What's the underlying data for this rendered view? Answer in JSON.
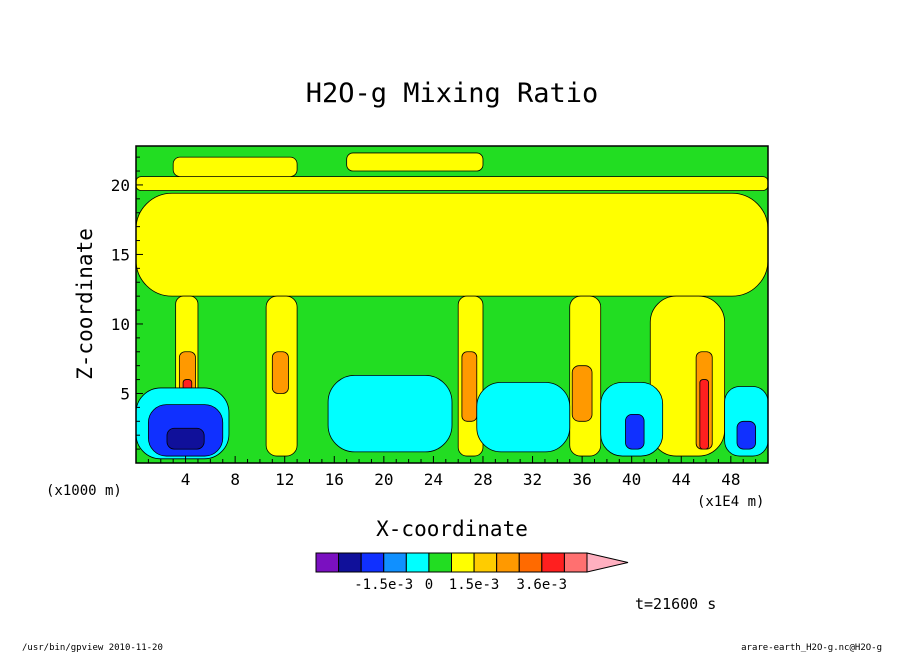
{
  "chart_data": {
    "type": "heatmap",
    "title": "H2O-g Mixing Ratio",
    "xlabel": "X-coordinate",
    "ylabel": "Z-coordinate",
    "x_unit_left": "(x1000 m)",
    "x_unit_right": "(x1E4 m)",
    "xlim": [
      0,
      51
    ],
    "ylim": [
      0,
      22.8
    ],
    "xticks": [
      4,
      8,
      12,
      16,
      20,
      24,
      28,
      32,
      36,
      40,
      44,
      48
    ],
    "yticks": [
      5,
      10,
      15,
      20
    ],
    "grid": false,
    "background_color": "#22dd22",
    "colorbar": {
      "colors": [
        "#7a10c0",
        "#10109a",
        "#1030ff",
        "#1090ff",
        "#00ffff",
        "#22dd22",
        "#ffff00",
        "#ffcc00",
        "#ff9900",
        "#ff6a00",
        "#ff1f1f",
        "#ff7070",
        "#ffb0c0"
      ],
      "labels": [
        "-1.5e-3",
        "0",
        "1.5e-3",
        "3.6e-3"
      ],
      "label_at_boundary": [
        3,
        5,
        7,
        10
      ]
    },
    "regions": [
      {
        "level": "positive",
        "color": "#ffff00",
        "x": [
          0,
          51
        ],
        "z": [
          19.6,
          20.6
        ]
      },
      {
        "level": "positive",
        "color": "#ffff00",
        "x": [
          3,
          13
        ],
        "z": [
          20.6,
          22
        ]
      },
      {
        "level": "positive",
        "color": "#ffff00",
        "x": [
          17,
          28
        ],
        "z": [
          21,
          22.3
        ]
      },
      {
        "level": "positive",
        "color": "#ffff00",
        "x": [
          0,
          51
        ],
        "z": [
          12,
          19.4
        ]
      },
      {
        "level": "positive",
        "color": "#ffff00",
        "x": [
          3.2,
          5
        ],
        "z": [
          0.5,
          12
        ]
      },
      {
        "level": "positive",
        "color": "#ffff00",
        "x": [
          10.5,
          13
        ],
        "z": [
          0.5,
          12
        ]
      },
      {
        "level": "positive",
        "color": "#ffff00",
        "x": [
          26,
          28
        ],
        "z": [
          0.5,
          12
        ]
      },
      {
        "level": "positive",
        "color": "#ffff00",
        "x": [
          35,
          37.5
        ],
        "z": [
          0.5,
          12
        ]
      },
      {
        "level": "positive",
        "color": "#ffff00",
        "x": [
          41.5,
          47.5
        ],
        "z": [
          0.5,
          12
        ]
      },
      {
        "level": "positive",
        "color": "#ff9900",
        "x": [
          3.5,
          4.8
        ],
        "z": [
          1,
          8
        ]
      },
      {
        "level": "positive",
        "color": "#ff9900",
        "x": [
          11,
          12.3
        ],
        "z": [
          5,
          8
        ]
      },
      {
        "level": "positive",
        "color": "#ff9900",
        "x": [
          26.3,
          27.5
        ],
        "z": [
          3,
          8
        ]
      },
      {
        "level": "positive",
        "color": "#ff9900",
        "x": [
          35.2,
          36.8
        ],
        "z": [
          3,
          7
        ]
      },
      {
        "level": "positive",
        "color": "#ff9900",
        "x": [
          45.2,
          46.5
        ],
        "z": [
          1,
          8
        ]
      },
      {
        "level": "positive",
        "color": "#ff1f1f",
        "x": [
          3.8,
          4.5
        ],
        "z": [
          1,
          6
        ]
      },
      {
        "level": "positive",
        "color": "#ff1f1f",
        "x": [
          45.5,
          46.2
        ],
        "z": [
          1,
          6
        ]
      },
      {
        "level": "negative",
        "color": "#00ffff",
        "x": [
          0,
          7.5
        ],
        "z": [
          0.3,
          5.4
        ]
      },
      {
        "level": "negative",
        "color": "#00ffff",
        "x": [
          15.5,
          25.5
        ],
        "z": [
          0.8,
          6.3
        ]
      },
      {
        "level": "negative",
        "color": "#00ffff",
        "x": [
          27.5,
          35
        ],
        "z": [
          0.8,
          5.8
        ]
      },
      {
        "level": "negative",
        "color": "#00ffff",
        "x": [
          37.5,
          42.5
        ],
        "z": [
          0.5,
          5.8
        ]
      },
      {
        "level": "negative",
        "color": "#00ffff",
        "x": [
          47.5,
          51
        ],
        "z": [
          0.5,
          5.5
        ]
      },
      {
        "level": "negative",
        "color": "#1030ff",
        "x": [
          1,
          7
        ],
        "z": [
          0.5,
          4.2
        ]
      },
      {
        "level": "negative",
        "color": "#1030ff",
        "x": [
          39.5,
          41
        ],
        "z": [
          1,
          3.5
        ]
      },
      {
        "level": "negative",
        "color": "#1030ff",
        "x": [
          48.5,
          50
        ],
        "z": [
          1,
          3
        ]
      },
      {
        "level": "negative",
        "color": "#10109a",
        "x": [
          2.5,
          5.5
        ],
        "z": [
          1,
          2.5
        ]
      }
    ]
  },
  "labels": {
    "time": "t=21600 s",
    "footer_left": "/usr/bin/gpview   2010-11-20",
    "footer_right": "arare-earth_H2O-g.nc@H2O-g"
  }
}
